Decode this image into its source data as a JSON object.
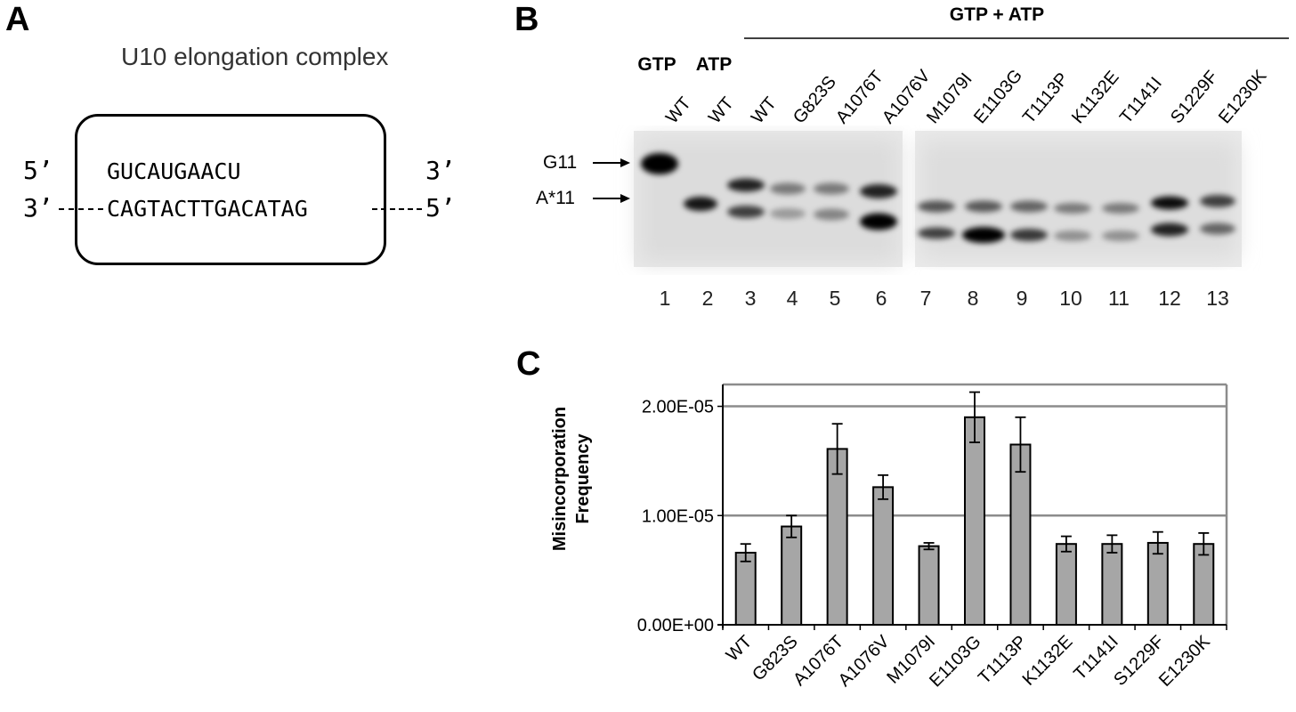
{
  "panel_a": {
    "letter": "A",
    "title": "U10 elongation complex",
    "rna_5prime": "5’",
    "rna_3prime": "3’",
    "rna_seq": "GUCAUGAACU",
    "dna_3prime": "3’",
    "dna_5prime": "5’",
    "dna_seq": "CAGTACTTGACATAG"
  },
  "panel_b": {
    "letter": "B",
    "group_label": "GTP + ATP",
    "cond_gtp": "GTP",
    "cond_atp": "ATP",
    "lane_labels": [
      "WT",
      "WT",
      "WT",
      "G823S",
      "A1076T",
      "A1076V",
      "M1079I",
      "E1103G",
      "T1113P",
      "K1132E",
      "T1141I",
      "S1229F",
      "E1230K"
    ],
    "lane_numbers": [
      "1",
      "2",
      "3",
      "4",
      "5",
      "6",
      "7",
      "8",
      "9",
      "10",
      "11",
      "12",
      "13"
    ],
    "band_g11": "G11",
    "band_a11": "A*11"
  },
  "panel_c": {
    "letter": "C",
    "ylabel_line1": "Misincorporation",
    "ylabel_line2": "Frequency"
  },
  "chart_data": {
    "type": "bar",
    "categories": [
      "WT",
      "G823S",
      "A1076T",
      "A1076V",
      "M1079I",
      "E1103G",
      "T1113P",
      "K1132E",
      "T1141I",
      "S1229F",
      "E1230K"
    ],
    "values": [
      6.6e-06,
      9e-06,
      1.61e-05,
      1.26e-05,
      7.2e-06,
      1.9e-05,
      1.65e-05,
      7.4e-06,
      7.4e-06,
      7.5e-06,
      7.4e-06
    ],
    "errors": [
      8e-07,
      1e-06,
      2.3e-06,
      1.1e-06,
      3e-07,
      2.3e-06,
      2.5e-06,
      7e-07,
      8e-07,
      1e-06,
      1e-06
    ],
    "ylim": [
      0,
      2.2e-05
    ],
    "yticks": [
      0,
      1e-05,
      2e-05
    ],
    "ytick_labels": [
      "0.00E+00",
      "1.00E-05",
      "2.00E-05"
    ],
    "grid": true,
    "bar_color": "#a6a6a6",
    "grid_color": "#8c8c8c"
  }
}
